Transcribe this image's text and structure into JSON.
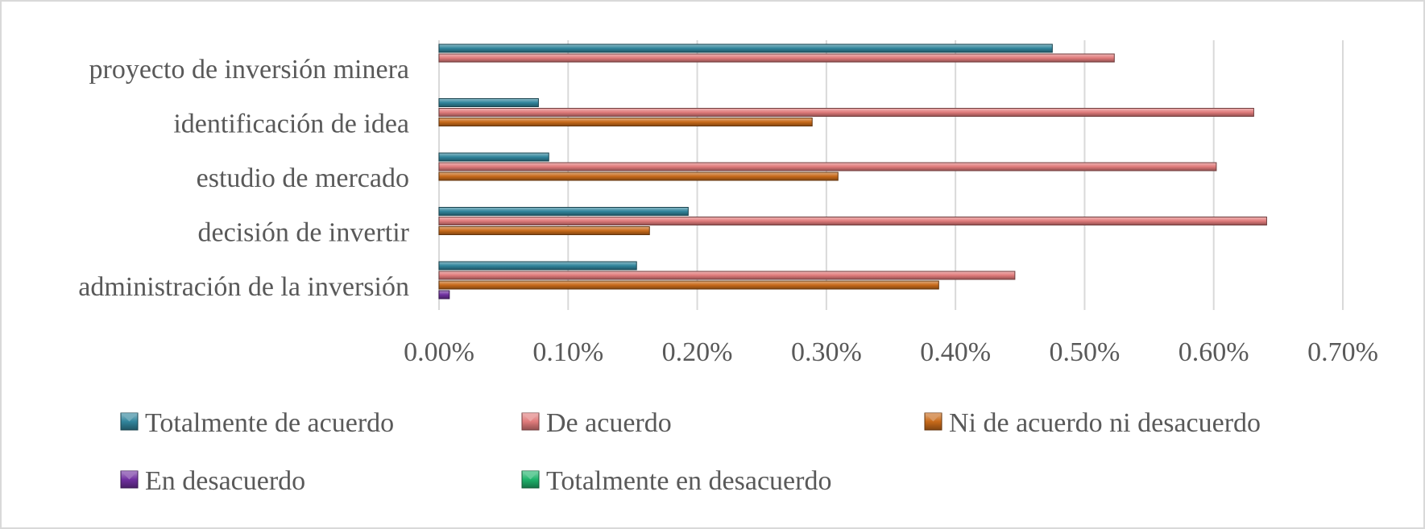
{
  "chart_data": {
    "type": "bar",
    "orientation": "horizontal",
    "title": "",
    "xlabel": "",
    "ylabel": "",
    "categories": [
      "proyecto de inversión minera",
      "identificación de idea",
      "estudio de mercado",
      "decisión de invertir",
      "administración de la inversión"
    ],
    "series": [
      {
        "name": "Totalmente de acuerdo",
        "color": "#31859c",
        "values": [
          0.475,
          0.077,
          0.085,
          0.193,
          0.153
        ]
      },
      {
        "name": "De acuerdo",
        "color": "#e07b7b",
        "values": [
          0.523,
          0.631,
          0.602,
          0.641,
          0.446
        ]
      },
      {
        "name": "Ni de acuerdo ni desacuerdo",
        "color": "#c86a1a",
        "values": [
          0.0,
          0.289,
          0.309,
          0.163,
          0.387
        ]
      },
      {
        "name": "En desacuerdo",
        "color": "#7030a0",
        "values": [
          0.0,
          0.0,
          0.0,
          0.0,
          0.008
        ]
      },
      {
        "name": "Totalmente en desacuerdo",
        "color": "#1fb36b",
        "values": [
          0.0,
          0.0,
          0.0,
          0.0,
          0.0
        ]
      }
    ],
    "xlim": [
      0,
      0.7
    ],
    "x_ticks": [
      "0.00%",
      "0.10%",
      "0.20%",
      "0.30%",
      "0.40%",
      "0.50%",
      "0.60%",
      "0.70%"
    ],
    "grid": "vertical",
    "legend_position": "bottom"
  }
}
